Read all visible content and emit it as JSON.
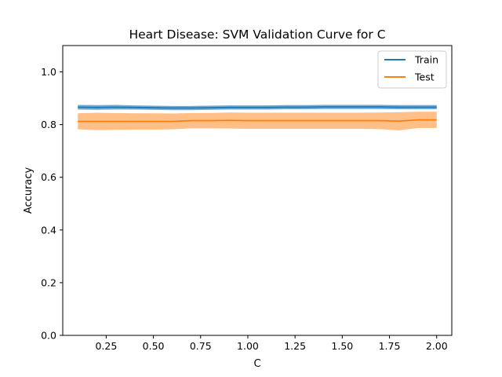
{
  "chart_data": {
    "type": "line",
    "title": "Heart Disease: SVM Validation Curve for C",
    "xlabel": "C",
    "ylabel": "Accuracy",
    "xlim": [
      0.02,
      2.08
    ],
    "ylim": [
      0.0,
      1.1
    ],
    "xticks": [
      0.25,
      0.5,
      0.75,
      1.0,
      1.25,
      1.5,
      1.75,
      2.0
    ],
    "xtick_labels": [
      "0.25",
      "0.50",
      "0.75",
      "1.00",
      "1.25",
      "1.50",
      "1.75",
      "2.00"
    ],
    "yticks": [
      0.0,
      0.2,
      0.4,
      0.6,
      0.8,
      1.0
    ],
    "ytick_labels": [
      "0.0",
      "0.2",
      "0.4",
      "0.6",
      "0.8",
      "1.0"
    ],
    "legend_position": "top-right",
    "grid": false,
    "x": [
      0.1,
      0.2,
      0.3,
      0.4,
      0.5,
      0.6,
      0.7,
      0.8,
      0.9,
      1.0,
      1.1,
      1.2,
      1.3,
      1.4,
      1.5,
      1.6,
      1.7,
      1.8,
      1.9,
      2.0
    ],
    "series": [
      {
        "name": "Train",
        "color": "#1f77b4",
        "values": [
          0.866,
          0.865,
          0.866,
          0.865,
          0.864,
          0.863,
          0.863,
          0.864,
          0.865,
          0.865,
          0.865,
          0.866,
          0.866,
          0.867,
          0.867,
          0.867,
          0.867,
          0.866,
          0.866,
          0.866
        ],
        "lower": [
          0.857,
          0.856,
          0.857,
          0.857,
          0.856,
          0.855,
          0.855,
          0.856,
          0.857,
          0.857,
          0.857,
          0.858,
          0.858,
          0.859,
          0.859,
          0.859,
          0.859,
          0.858,
          0.858,
          0.858
        ],
        "upper": [
          0.875,
          0.874,
          0.875,
          0.873,
          0.872,
          0.871,
          0.871,
          0.872,
          0.873,
          0.873,
          0.873,
          0.874,
          0.874,
          0.875,
          0.875,
          0.875,
          0.875,
          0.874,
          0.874,
          0.874
        ]
      },
      {
        "name": "Test",
        "color": "#ff7f0e",
        "values": [
          0.812,
          0.812,
          0.812,
          0.812,
          0.812,
          0.812,
          0.815,
          0.815,
          0.816,
          0.815,
          0.815,
          0.815,
          0.815,
          0.815,
          0.815,
          0.815,
          0.815,
          0.813,
          0.818,
          0.818
        ],
        "lower": [
          0.782,
          0.779,
          0.78,
          0.781,
          0.781,
          0.782,
          0.786,
          0.786,
          0.785,
          0.784,
          0.784,
          0.784,
          0.784,
          0.784,
          0.784,
          0.784,
          0.783,
          0.778,
          0.787,
          0.787
        ],
        "upper": [
          0.843,
          0.845,
          0.844,
          0.843,
          0.843,
          0.842,
          0.844,
          0.844,
          0.846,
          0.845,
          0.845,
          0.845,
          0.845,
          0.845,
          0.845,
          0.845,
          0.846,
          0.847,
          0.849,
          0.849
        ]
      }
    ]
  }
}
